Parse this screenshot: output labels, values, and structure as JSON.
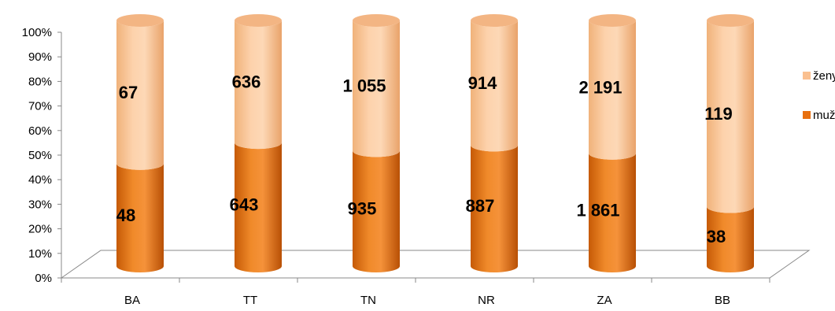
{
  "chart_data": {
    "type": "bar",
    "stacked": "percent",
    "style": "3d-cylinder",
    "categories": [
      "BA",
      "TT",
      "TN",
      "NR",
      "ZA",
      "BB"
    ],
    "series": [
      {
        "name": "muži",
        "values": [
          48,
          643,
          935,
          887,
          1861,
          38
        ],
        "labels": [
          "48",
          "643",
          "935",
          "887",
          "1 861",
          "38"
        ]
      },
      {
        "name": "ženy",
        "values": [
          67,
          636,
          1055,
          914,
          2191,
          119
        ],
        "labels": [
          "67",
          "636",
          "1 055",
          "914",
          "2 191",
          "119"
        ]
      }
    ],
    "y_ticks": [
      "0%",
      "10%",
      "20%",
      "30%",
      "40%",
      "50%",
      "60%",
      "70%",
      "80%",
      "90%",
      "100%"
    ],
    "ylim": [
      0,
      100
    ],
    "legend_position": "right",
    "grid": false,
    "colors": {
      "muži": "#e8700f",
      "ženy": "#fac090"
    }
  }
}
